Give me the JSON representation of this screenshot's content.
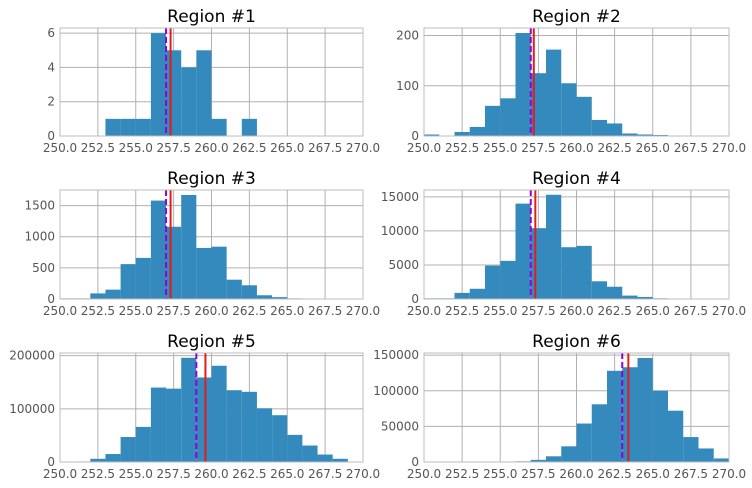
{
  "chart_data": [
    {
      "type": "bar",
      "title": "Region #1",
      "xlim": [
        250,
        270
      ],
      "ylim": [
        0,
        6.3
      ],
      "xticks": [
        "250.0",
        "252.5",
        "255.0",
        "257.5",
        "260.0",
        "262.5",
        "265.0",
        "267.5",
        "270.0"
      ],
      "yticks": [
        "0",
        "2",
        "4",
        "6"
      ],
      "bin_edges": [
        250,
        251,
        252,
        253,
        254,
        255,
        256,
        257,
        258,
        259,
        260,
        261,
        262,
        263,
        264,
        265,
        266,
        267,
        268,
        269,
        270
      ],
      "values": [
        0,
        0,
        0,
        1,
        1,
        1,
        6,
        5,
        4,
        5,
        1,
        0,
        1,
        0,
        0,
        0,
        0,
        0,
        0,
        0
      ],
      "median_line": 257.0,
      "mean_line": 257.3,
      "colors": {
        "bars": "#348abd",
        "median": "#9400d3",
        "mean": "#e41a1c"
      }
    },
    {
      "type": "bar",
      "title": "Region #2",
      "xlim": [
        250,
        270
      ],
      "ylim": [
        0,
        215
      ],
      "xticks": [
        "250.0",
        "252.5",
        "255.0",
        "257.5",
        "260.0",
        "262.5",
        "265.0",
        "267.5",
        "270.0"
      ],
      "yticks": [
        "0",
        "100",
        "200"
      ],
      "bin_edges": [
        250,
        251,
        252,
        253,
        254,
        255,
        256,
        257,
        258,
        259,
        260,
        261,
        262,
        263,
        264,
        265,
        266,
        267,
        268,
        269,
        270
      ],
      "values": [
        3,
        0,
        8,
        18,
        60,
        75,
        205,
        125,
        172,
        105,
        78,
        32,
        25,
        5,
        3,
        2,
        0,
        0,
        0,
        0
      ],
      "median_line": 257.0,
      "mean_line": 257.2,
      "colors": {
        "bars": "#348abd",
        "median": "#9400d3",
        "mean": "#e41a1c"
      }
    },
    {
      "type": "bar",
      "title": "Region #3",
      "xlim": [
        250,
        270
      ],
      "ylim": [
        0,
        1750
      ],
      "xticks": [
        "250.0",
        "252.5",
        "255.0",
        "257.5",
        "260.0",
        "262.5",
        "265.0",
        "267.5",
        "270.0"
      ],
      "yticks": [
        "0",
        "500",
        "1000",
        "1500"
      ],
      "bin_edges": [
        250,
        251,
        252,
        253,
        254,
        255,
        256,
        257,
        258,
        259,
        260,
        261,
        262,
        263,
        264,
        265,
        266,
        267,
        268,
        269,
        270
      ],
      "values": [
        10,
        10,
        90,
        150,
        560,
        660,
        1580,
        1160,
        1670,
        820,
        840,
        310,
        220,
        60,
        30,
        10,
        0,
        0,
        0,
        0
      ],
      "median_line": 257.0,
      "mean_line": 257.3,
      "colors": {
        "bars": "#348abd",
        "median": "#9400d3",
        "mean": "#e41a1c"
      }
    },
    {
      "type": "bar",
      "title": "Region #4",
      "xlim": [
        250,
        270
      ],
      "ylim": [
        0,
        16000
      ],
      "xticks": [
        "250.0",
        "252.5",
        "255.0",
        "257.5",
        "260.0",
        "262.5",
        "265.0",
        "267.5",
        "270.0"
      ],
      "yticks": [
        "0",
        "5000",
        "10000",
        "15000"
      ],
      "bin_edges": [
        250,
        251,
        252,
        253,
        254,
        255,
        256,
        257,
        258,
        259,
        260,
        261,
        262,
        263,
        264,
        265,
        266,
        267,
        268,
        269,
        270
      ],
      "values": [
        100,
        100,
        900,
        1500,
        4900,
        5600,
        14000,
        10400,
        15300,
        7600,
        7800,
        2600,
        1800,
        500,
        300,
        100,
        0,
        0,
        0,
        0
      ],
      "median_line": 257.0,
      "mean_line": 257.3,
      "colors": {
        "bars": "#348abd",
        "median": "#9400d3",
        "mean": "#e41a1c"
      }
    },
    {
      "type": "bar",
      "title": "Region #5",
      "xlim": [
        250,
        270
      ],
      "ylim": [
        0,
        205000
      ],
      "xticks": [
        "250.0",
        "252.5",
        "255.0",
        "257.5",
        "260.0",
        "262.5",
        "265.0",
        "267.5",
        "270.0"
      ],
      "yticks": [
        "0",
        "100000",
        "200000"
      ],
      "bin_edges": [
        250,
        251,
        252,
        253,
        254,
        255,
        256,
        257,
        258,
        259,
        260,
        261,
        262,
        263,
        264,
        265,
        266,
        267,
        268,
        269,
        270
      ],
      "values": [
        0,
        1000,
        6000,
        15000,
        47000,
        66000,
        140000,
        138000,
        196000,
        159000,
        181000,
        135000,
        132000,
        101000,
        88000,
        51000,
        31000,
        14000,
        6000,
        0
      ],
      "median_line": 259.0,
      "mean_line": 259.6,
      "colors": {
        "bars": "#348abd",
        "median": "#9400d3",
        "mean": "#e41a1c"
      }
    },
    {
      "type": "bar",
      "title": "Region #6",
      "xlim": [
        250,
        270
      ],
      "ylim": [
        0,
        153000
      ],
      "xticks": [
        "250.0",
        "252.5",
        "255.0",
        "257.5",
        "260.0",
        "262.5",
        "265.0",
        "267.5",
        "270.0"
      ],
      "yticks": [
        "0",
        "50000",
        "100000",
        "150000"
      ],
      "bin_edges": [
        250,
        251,
        252,
        253,
        254,
        255,
        256,
        257,
        258,
        259,
        260,
        261,
        262,
        263,
        264,
        265,
        266,
        267,
        268,
        269,
        270
      ],
      "values": [
        0,
        0,
        0,
        0,
        0,
        0,
        1000,
        3000,
        8000,
        22000,
        54000,
        81000,
        128000,
        133000,
        146000,
        100000,
        72000,
        35000,
        19000,
        5000
      ],
      "median_line": 263.0,
      "mean_line": 263.4,
      "colors": {
        "bars": "#348abd",
        "median": "#9400d3",
        "mean": "#e41a1c"
      }
    }
  ]
}
